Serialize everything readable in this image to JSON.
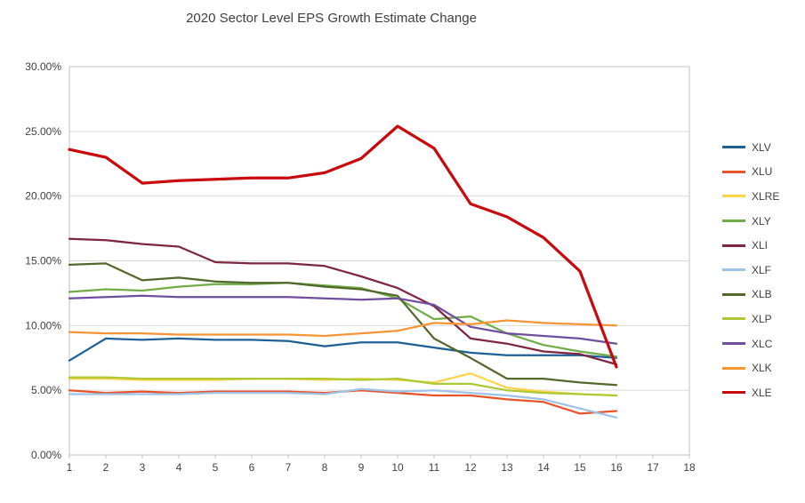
{
  "title": "2020 Sector Level EPS Growth Estimate Change",
  "colors": {
    "gridline": "#D9D9D9",
    "plot_border": "#C0C0C0",
    "axis_text": "#404040",
    "background": "#FFFFFF"
  },
  "chart_data": {
    "type": "line",
    "title": "2020 Sector Level EPS Growth Estimate Change",
    "xlabel": "",
    "ylabel": "",
    "grid": true,
    "legend_position": "right",
    "ylim": [
      0,
      30
    ],
    "y_ticks": [
      0,
      5,
      10,
      15,
      20,
      25,
      30
    ],
    "y_tick_labels": [
      "0.00%",
      "5.00%",
      "10.00%",
      "15.00%",
      "20.00%",
      "25.00%",
      "30.00%"
    ],
    "x_ticks": [
      1,
      2,
      3,
      4,
      5,
      6,
      7,
      8,
      9,
      10,
      11,
      12,
      13,
      14,
      15,
      16,
      17,
      18
    ],
    "x": [
      1,
      2,
      3,
      4,
      5,
      6,
      7,
      8,
      9,
      10,
      11,
      12,
      13,
      14,
      15,
      16
    ],
    "series": [
      {
        "name": "XLV",
        "color": "#1F6096",
        "stroke_width": 2.25,
        "values": [
          7.3,
          9.0,
          8.9,
          9.0,
          8.9,
          8.9,
          8.8,
          8.4,
          8.7,
          8.7,
          8.3,
          7.9,
          7.7,
          7.7,
          7.7,
          7.5
        ]
      },
      {
        "name": "XLU",
        "color": "#E8532C",
        "stroke_width": 2.25,
        "values": [
          5.0,
          4.8,
          4.9,
          4.8,
          4.9,
          4.9,
          4.9,
          4.8,
          5.0,
          4.8,
          4.6,
          4.6,
          4.3,
          4.1,
          3.2,
          3.4
        ]
      },
      {
        "name": "XLRE",
        "color": "#FFD34E",
        "stroke_width": 2.25,
        "values": [
          5.9,
          5.9,
          5.8,
          5.8,
          5.8,
          5.9,
          5.9,
          5.8,
          5.9,
          5.8,
          5.6,
          6.3,
          5.2,
          4.9,
          4.7,
          4.6
        ]
      },
      {
        "name": "XLY",
        "color": "#70AD47",
        "stroke_width": 2.25,
        "values": [
          12.6,
          12.8,
          12.7,
          13.0,
          13.2,
          13.2,
          13.3,
          13.1,
          12.9,
          12.1,
          10.5,
          10.7,
          9.4,
          8.5,
          8.0,
          7.6
        ]
      },
      {
        "name": "XLI",
        "color": "#7E2640",
        "stroke_width": 2.25,
        "values": [
          16.7,
          16.6,
          16.3,
          16.1,
          14.9,
          14.8,
          14.8,
          14.6,
          13.8,
          12.9,
          11.5,
          9.0,
          8.6,
          8.0,
          7.8,
          7.0
        ]
      },
      {
        "name": "XLF",
        "color": "#9DC3E6",
        "stroke_width": 2.25,
        "values": [
          4.7,
          4.7,
          4.7,
          4.7,
          4.8,
          4.8,
          4.8,
          4.7,
          5.1,
          4.9,
          5.0,
          4.8,
          4.6,
          4.3,
          3.6,
          2.9
        ]
      },
      {
        "name": "XLB",
        "color": "#53682B",
        "stroke_width": 2.25,
        "values": [
          14.7,
          14.8,
          13.5,
          13.7,
          13.4,
          13.3,
          13.3,
          13.0,
          12.8,
          12.3,
          9.0,
          7.5,
          5.9,
          5.9,
          5.6,
          5.4
        ]
      },
      {
        "name": "XLP",
        "color": "#ACC832",
        "stroke_width": 2.25,
        "values": [
          6.0,
          6.0,
          5.9,
          5.9,
          5.9,
          5.9,
          5.9,
          5.9,
          5.8,
          5.9,
          5.5,
          5.5,
          5.0,
          4.8,
          4.7,
          4.6
        ]
      },
      {
        "name": "XLC",
        "color": "#6F4E9F",
        "stroke_width": 2.25,
        "values": [
          12.1,
          12.2,
          12.3,
          12.2,
          12.2,
          12.2,
          12.2,
          12.1,
          12.0,
          12.1,
          11.6,
          9.9,
          9.4,
          9.2,
          9.0,
          8.6
        ]
      },
      {
        "name": "XLK",
        "color": "#F79434",
        "stroke_width": 2.25,
        "values": [
          9.5,
          9.4,
          9.4,
          9.3,
          9.3,
          9.3,
          9.3,
          9.2,
          9.4,
          9.6,
          10.2,
          10.1,
          10.4,
          10.2,
          10.1,
          10.0
        ]
      },
      {
        "name": "XLE",
        "color": "#C80A0E",
        "stroke_width": 3.25,
        "values": [
          23.6,
          23.0,
          21.0,
          21.2,
          21.3,
          21.4,
          21.4,
          21.8,
          22.9,
          25.4,
          23.7,
          19.4,
          18.4,
          16.8,
          14.2,
          6.8
        ]
      }
    ]
  }
}
